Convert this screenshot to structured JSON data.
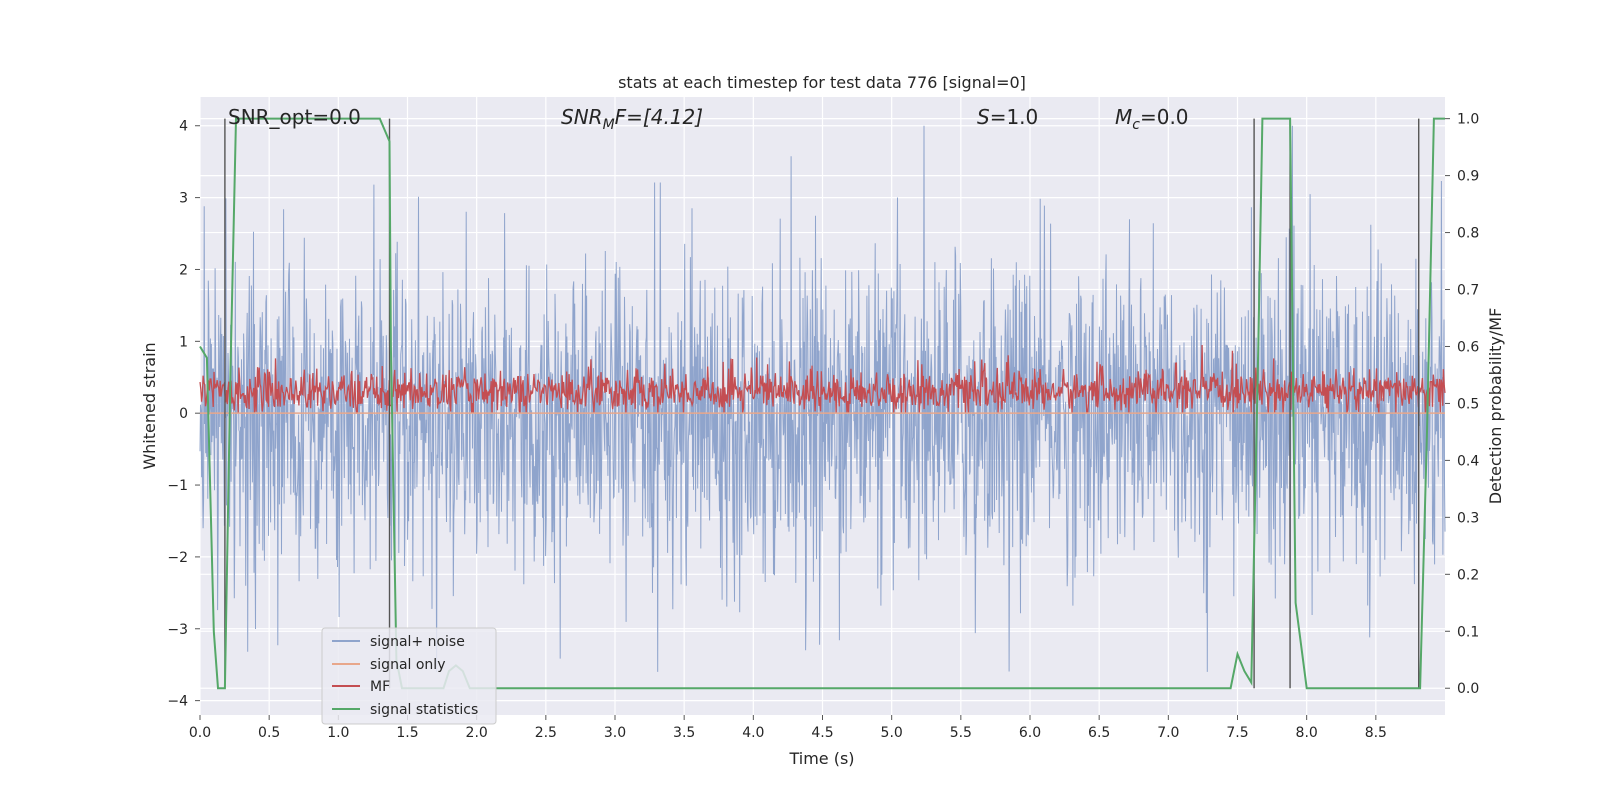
{
  "chart_data": {
    "type": "line",
    "title": "stats at each timestep for test data 776 [signal=0]",
    "xlabel": "Time (s)",
    "ylabel_left": "Whitened strain",
    "ylabel_right": "Detection probability/MF",
    "xlim": [
      0.0,
      9.0
    ],
    "ylim_left": [
      -4.2,
      4.4
    ],
    "ylim_right": [
      -0.047,
      1.038
    ],
    "x_ticks": [
      "0.0",
      "0.5",
      "1.0",
      "1.5",
      "2.0",
      "2.5",
      "3.0",
      "3.5",
      "4.0",
      "4.5",
      "5.0",
      "5.5",
      "6.0",
      "6.5",
      "7.0",
      "7.5",
      "8.0",
      "8.5"
    ],
    "y_ticks_left": [
      "4",
      "3",
      "2",
      "1",
      "0",
      "−1",
      "−2",
      "−3",
      "−4"
    ],
    "y_ticks_right": [
      "1.0",
      "0.9",
      "0.8",
      "0.7",
      "0.6",
      "0.5",
      "0.4",
      "0.3",
      "0.2",
      "0.1",
      "0.0"
    ],
    "annotations": {
      "snr_opt": "SNR_opt=0.0",
      "snr_mf_sym": "SNR",
      "snr_mf_sub": "M",
      "snr_mf_rest": "F=[4.12]",
      "s_sym": "S",
      "s_rest": "=1.0",
      "mc_sym": "M",
      "mc_sub": "c",
      "mc_rest": "=0.0"
    },
    "legend_position": "lower-left",
    "legend": [
      "signal+ noise",
      "signal only",
      "MF",
      "signal statistics"
    ],
    "series": [
      {
        "name": "signal+ noise",
        "axis": "left",
        "color": "#8fa4cc",
        "description_range": [
          -3.6,
          4.0
        ]
      },
      {
        "name": "signal only",
        "axis": "left",
        "color": "#e8a78b",
        "x": [
          0.0,
          9.0
        ],
        "y": [
          0.0,
          0.0
        ]
      },
      {
        "name": "MF",
        "axis": "left",
        "color": "#c44e52",
        "description_range": [
          0.0,
          0.95
        ]
      },
      {
        "name": "signal statistics",
        "axis": "right",
        "color": "#55a868",
        "x": [
          0.0,
          0.05,
          0.1,
          0.13,
          0.18,
          0.22,
          0.26,
          1.3,
          1.37,
          1.38,
          1.42,
          1.46,
          1.76,
          1.8,
          1.85,
          1.9,
          1.95,
          7.45,
          7.5,
          7.55,
          7.6,
          7.65,
          7.68,
          7.72,
          7.88,
          7.92,
          8.0,
          8.82,
          8.87,
          8.92,
          9.0
        ],
        "y": [
          0.6,
          0.58,
          0.1,
          0.0,
          0.0,
          0.55,
          1.0,
          1.0,
          0.96,
          0.6,
          0.05,
          0.0,
          0.0,
          0.03,
          0.04,
          0.03,
          0.0,
          0.0,
          0.06,
          0.03,
          0.01,
          0.6,
          1.0,
          1.0,
          1.0,
          0.15,
          0.0,
          0.0,
          0.45,
          1.0,
          1.0
        ]
      }
    ],
    "vertical_markers_x": [
      0.18,
      1.37,
      7.62,
      7.88,
      8.81
    ]
  }
}
